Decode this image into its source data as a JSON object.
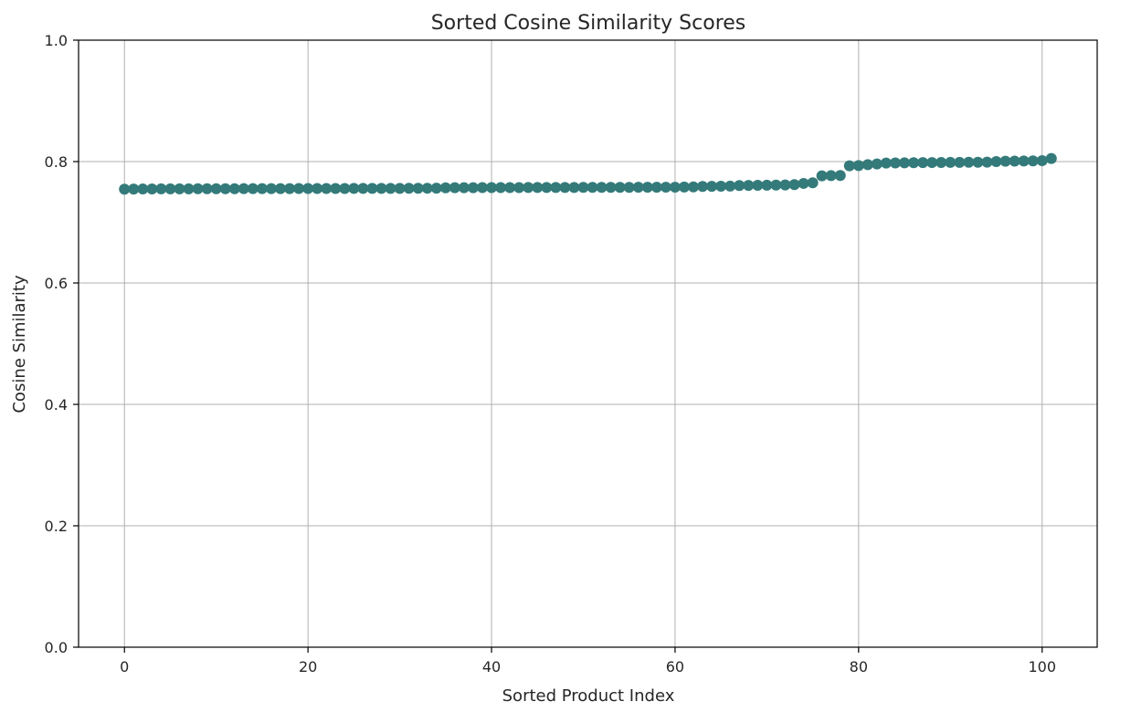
{
  "chart_data": {
    "type": "scatter",
    "title": "Sorted Cosine Similarity Scores",
    "xlabel": "Sorted Product Index",
    "ylabel": "Cosine Similarity",
    "xlim": [
      -5,
      106
    ],
    "ylim": [
      0.0,
      1.0
    ],
    "xticks": [
      0,
      20,
      40,
      60,
      80,
      100
    ],
    "yticks": [
      0.0,
      0.2,
      0.4,
      0.6,
      0.8,
      1.0
    ],
    "xtick_labels": [
      "0",
      "20",
      "40",
      "60",
      "80",
      "100"
    ],
    "ytick_labels": [
      "0.0",
      "0.2",
      "0.4",
      "0.6",
      "0.8",
      "1.0"
    ],
    "grid": true,
    "marker_color": "#347a7a",
    "series": [
      {
        "values": [
          0.7545,
          0.7547,
          0.7548,
          0.7549,
          0.755,
          0.755,
          0.7551,
          0.7551,
          0.7552,
          0.7552,
          0.7553,
          0.7553,
          0.7553,
          0.7554,
          0.7554,
          0.7554,
          0.7555,
          0.7555,
          0.7555,
          0.7556,
          0.7556,
          0.7556,
          0.7557,
          0.7557,
          0.7557,
          0.7558,
          0.7558,
          0.7558,
          0.7559,
          0.7559,
          0.7559,
          0.756,
          0.756,
          0.7561,
          0.7562,
          0.7568,
          0.7569,
          0.757,
          0.757,
          0.7571,
          0.7571,
          0.7572,
          0.7572,
          0.7572,
          0.7573,
          0.7573,
          0.7573,
          0.7574,
          0.7574,
          0.7574,
          0.7575,
          0.7575,
          0.7575,
          0.7576,
          0.7576,
          0.7576,
          0.7577,
          0.7577,
          0.7577,
          0.7578,
          0.7578,
          0.758,
          0.7583,
          0.759,
          0.7592,
          0.7594,
          0.7596,
          0.7605,
          0.7607,
          0.7609,
          0.7611,
          0.7613,
          0.7615,
          0.762,
          0.764,
          0.765,
          0.7765,
          0.7768,
          0.777,
          0.793,
          0.7935,
          0.795,
          0.796,
          0.7975,
          0.7978,
          0.798,
          0.7982,
          0.7983,
          0.7984,
          0.7985,
          0.7986,
          0.7987,
          0.7988,
          0.7989,
          0.799,
          0.8,
          0.8005,
          0.8008,
          0.801,
          0.8012,
          0.8015,
          0.805
        ]
      }
    ]
  }
}
